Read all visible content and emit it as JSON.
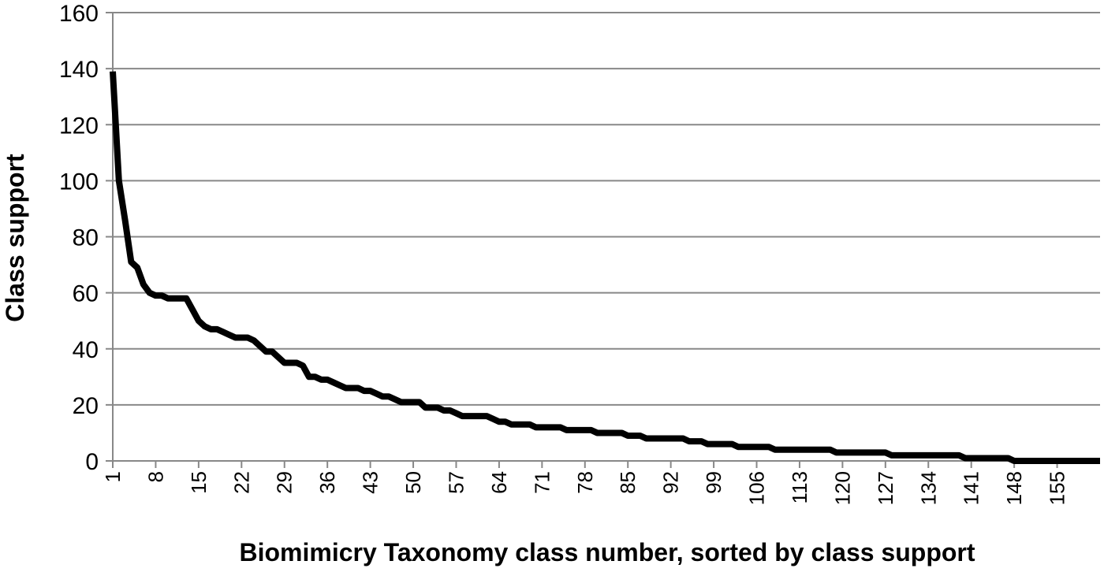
{
  "chart_data": {
    "type": "line",
    "title": "",
    "xlabel": "Biomimicry Taxonomy class number, sorted by class support",
    "ylabel": "Class support",
    "ylim": [
      0,
      160
    ],
    "yticks": [
      0,
      20,
      40,
      60,
      80,
      100,
      120,
      140,
      160
    ],
    "xlim": [
      1,
      162
    ],
    "xtick_labels": [
      "1",
      "8",
      "15",
      "22",
      "29",
      "36",
      "43",
      "50",
      "57",
      "64",
      "71",
      "78",
      "85",
      "92",
      "99",
      "106",
      "113",
      "120",
      "127",
      "134",
      "141",
      "148",
      "155"
    ],
    "grid": "horizontal",
    "legend": "none",
    "line_color": "#000000",
    "series": [
      {
        "x": [
          1,
          2,
          3,
          4,
          5,
          6,
          7,
          8,
          9,
          10,
          11,
          12,
          13,
          14,
          15,
          16,
          17,
          18,
          19,
          20,
          21,
          22,
          23,
          24,
          25,
          26,
          27,
          28,
          29,
          30,
          31,
          32,
          33,
          34,
          35,
          36,
          37,
          38,
          39,
          40,
          41,
          42,
          43,
          44,
          45,
          46,
          47,
          48,
          49,
          50,
          51,
          52,
          53,
          54,
          55,
          56,
          57,
          58,
          59,
          60,
          61,
          62,
          63,
          64,
          65,
          66,
          67,
          68,
          69,
          70,
          71,
          72,
          73,
          74,
          75,
          76,
          77,
          78,
          79,
          80,
          81,
          82,
          83,
          84,
          85,
          86,
          87,
          88,
          89,
          90,
          91,
          92,
          93,
          94,
          95,
          96,
          97,
          98,
          99,
          100,
          101,
          102,
          103,
          104,
          105,
          106,
          107,
          108,
          109,
          110,
          111,
          112,
          113,
          114,
          115,
          116,
          117,
          118,
          119,
          120,
          121,
          122,
          123,
          124,
          125,
          126,
          127,
          128,
          129,
          130,
          131,
          132,
          133,
          134,
          135,
          136,
          137,
          138,
          139,
          140,
          141,
          142,
          143,
          144,
          145,
          146,
          147,
          148,
          149,
          150,
          151,
          152,
          153,
          154,
          155,
          156,
          157,
          158,
          159,
          160,
          161,
          162
        ],
        "values": [
          139,
          100,
          86,
          71,
          69,
          63,
          60,
          59,
          59,
          58,
          58,
          58,
          58,
          54,
          50,
          48,
          47,
          47,
          46,
          45,
          44,
          44,
          44,
          43,
          41,
          39,
          39,
          37,
          35,
          35,
          35,
          34,
          30,
          30,
          29,
          29,
          28,
          27,
          26,
          26,
          26,
          25,
          25,
          24,
          23,
          23,
          22,
          21,
          21,
          21,
          21,
          19,
          19,
          19,
          18,
          18,
          17,
          16,
          16,
          16,
          16,
          16,
          15,
          14,
          14,
          13,
          13,
          13,
          13,
          12,
          12,
          12,
          12,
          12,
          11,
          11,
          11,
          11,
          11,
          10,
          10,
          10,
          10,
          10,
          9,
          9,
          9,
          8,
          8,
          8,
          8,
          8,
          8,
          8,
          7,
          7,
          7,
          6,
          6,
          6,
          6,
          6,
          5,
          5,
          5,
          5,
          5,
          5,
          4,
          4,
          4,
          4,
          4,
          4,
          4,
          4,
          4,
          4,
          3,
          3,
          3,
          3,
          3,
          3,
          3,
          3,
          3,
          2,
          2,
          2,
          2,
          2,
          2,
          2,
          2,
          2,
          2,
          2,
          2,
          1,
          1,
          1,
          1,
          1,
          1,
          1,
          1,
          0,
          0,
          0,
          0,
          0,
          0,
          0,
          0,
          0,
          0,
          0,
          0,
          0,
          0,
          0
        ]
      }
    ]
  }
}
